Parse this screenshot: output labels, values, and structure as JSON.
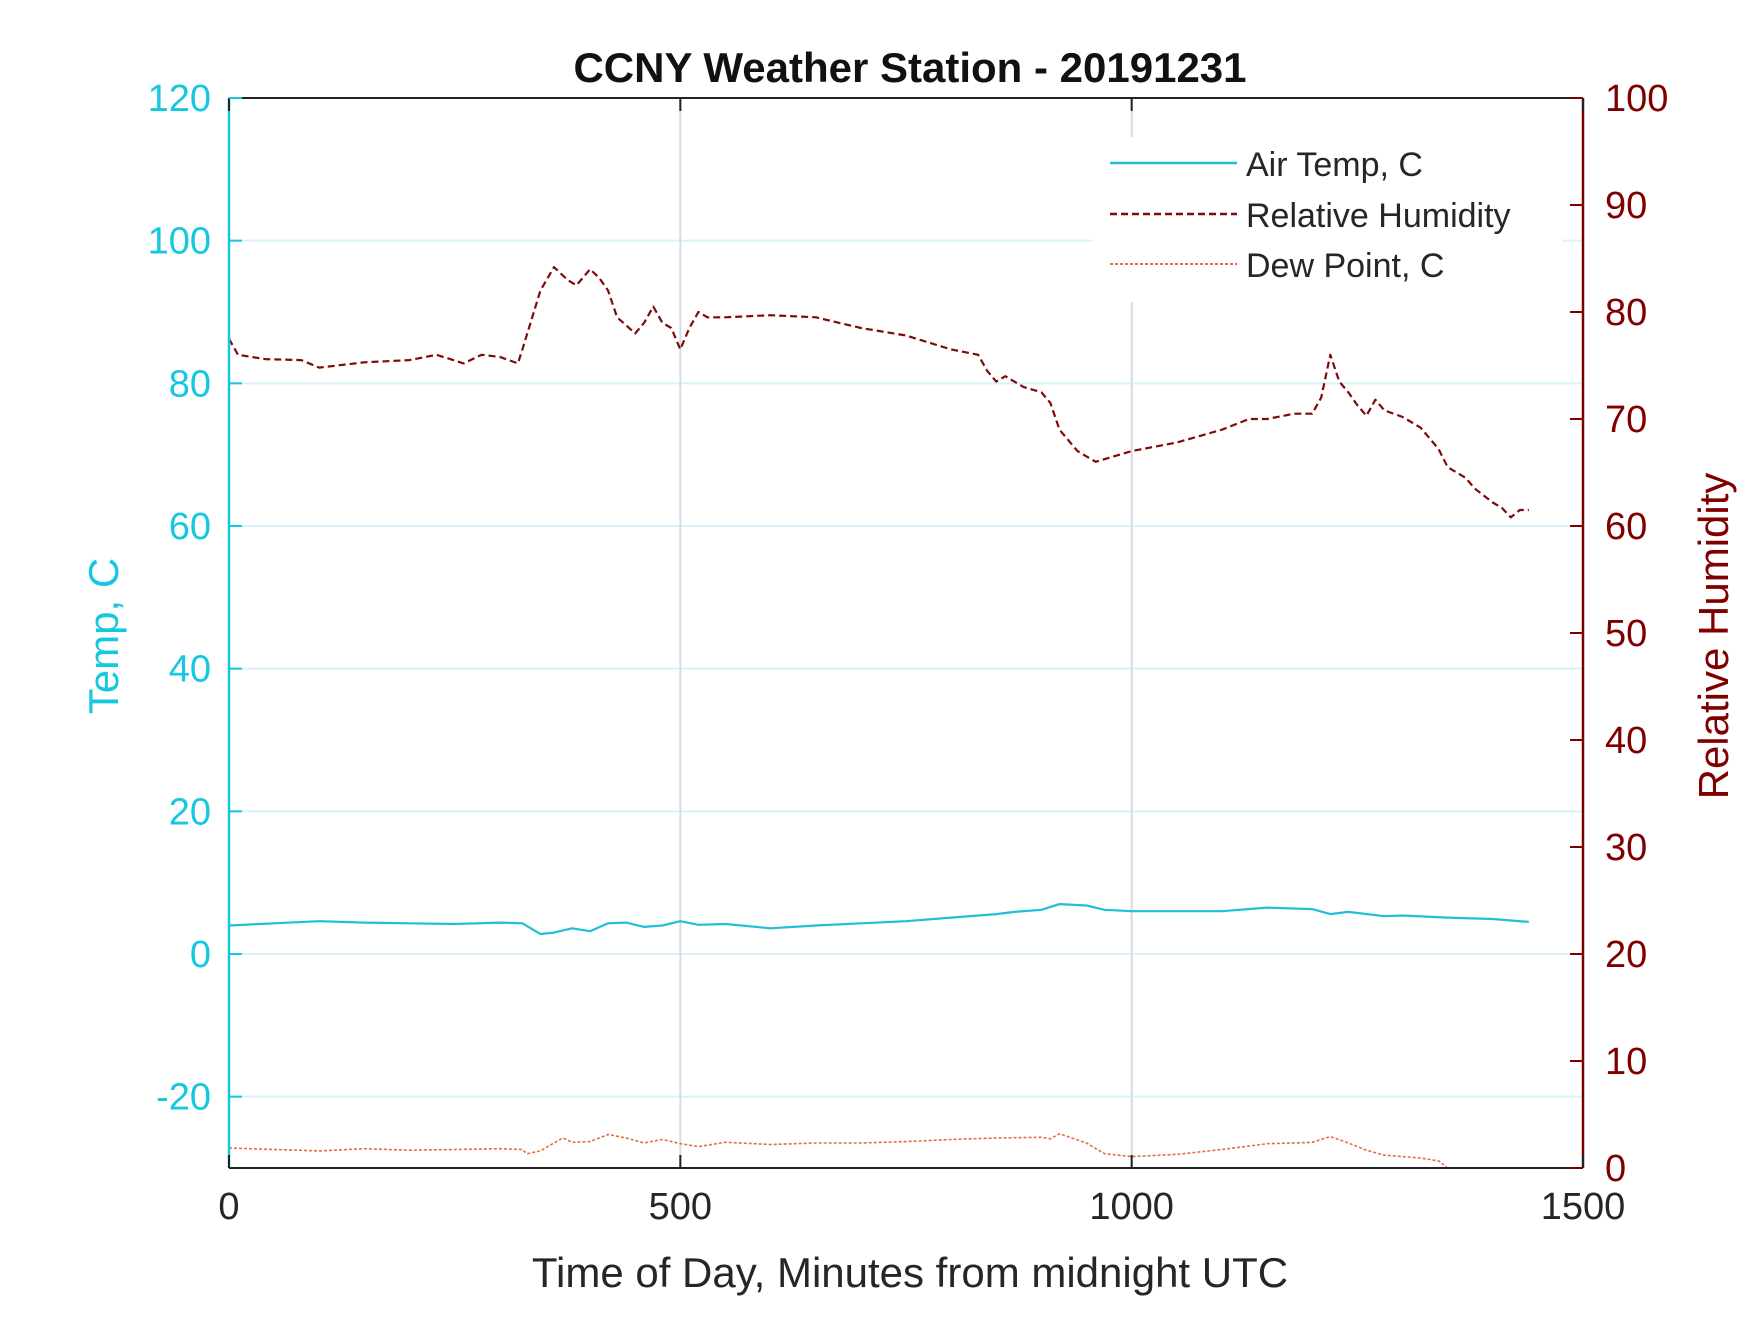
{
  "colors": {
    "temp_axis": "#16c7e0",
    "rh_axis": "#800000",
    "air_temp": "#21bfd6",
    "relative_humidity": "#7f0a0a",
    "dew_point": "#e07040",
    "grid_temp": "#d8f4fa",
    "grid_x": "#d6dbe2",
    "frame": "#222222"
  },
  "chart_data": {
    "type": "line",
    "title": "CCNY Weather Station - 20191231",
    "xlabel": "Time of Day, Minutes from midnight UTC",
    "ylabel_left": "Temp, C",
    "ylabel_right": "Relative Humidity",
    "xlim": [
      0,
      1500
    ],
    "ylim_left": [
      -30,
      120
    ],
    "ylim_right": [
      0,
      100
    ],
    "x_ticks": [
      0,
      500,
      1000,
      1500
    ],
    "x_tick_labels": [
      "0",
      "500",
      "1000",
      "1500"
    ],
    "y_left_ticks": [
      -20,
      0,
      20,
      40,
      60,
      80,
      100,
      120
    ],
    "y_left_tick_labels": [
      "-20",
      "0",
      "20",
      "40",
      "60",
      "80",
      "100",
      "120"
    ],
    "y_right_ticks": [
      0,
      10,
      20,
      30,
      40,
      50,
      60,
      70,
      80,
      90,
      100
    ],
    "y_right_tick_labels": [
      "0",
      "10",
      "20",
      "30",
      "40",
      "50",
      "60",
      "70",
      "80",
      "90",
      "100"
    ],
    "grid": "x and left-y major",
    "legend_position": "top-right",
    "series": [
      {
        "name": "Air Temp, C",
        "axis": "left",
        "style": "solid",
        "x": [
          0,
          50,
          100,
          150,
          200,
          250,
          300,
          325,
          345,
          360,
          380,
          400,
          420,
          440,
          460,
          480,
          500,
          520,
          550,
          600,
          650,
          700,
          750,
          800,
          850,
          870,
          900,
          920,
          950,
          970,
          1000,
          1050,
          1100,
          1150,
          1200,
          1220,
          1240,
          1280,
          1300,
          1350,
          1400,
          1440
        ],
        "y": [
          4.0,
          4.3,
          4.6,
          4.4,
          4.3,
          4.2,
          4.4,
          4.3,
          2.8,
          3.0,
          3.6,
          3.2,
          4.3,
          4.4,
          3.8,
          4.0,
          4.6,
          4.1,
          4.2,
          3.6,
          4.0,
          4.3,
          4.6,
          5.1,
          5.6,
          5.9,
          6.2,
          7.0,
          6.8,
          6.2,
          6.0,
          6.0,
          6.0,
          6.5,
          6.3,
          5.6,
          5.9,
          5.3,
          5.4,
          5.1,
          4.9,
          4.5
        ]
      },
      {
        "name": "Relative Humidity",
        "axis": "right",
        "style": "dashed",
        "x": [
          0,
          10,
          40,
          80,
          100,
          150,
          200,
          230,
          260,
          280,
          300,
          320,
          325,
          345,
          360,
          375,
          385,
          400,
          410,
          420,
          430,
          450,
          460,
          470,
          480,
          490,
          500,
          510,
          520,
          530,
          550,
          600,
          650,
          700,
          750,
          800,
          830,
          840,
          850,
          860,
          880,
          900,
          910,
          920,
          940,
          960,
          980,
          1000,
          1050,
          1100,
          1130,
          1150,
          1180,
          1200,
          1210,
          1220,
          1230,
          1240,
          1250,
          1260,
          1270,
          1280,
          1300,
          1320,
          1340,
          1350,
          1370,
          1380,
          1400,
          1410,
          1420,
          1430,
          1440
        ],
        "y": [
          77.5,
          76,
          75.6,
          75.5,
          74.8,
          75.3,
          75.5,
          76,
          75.2,
          76,
          75.8,
          75.2,
          76.5,
          82,
          84.2,
          83,
          82.5,
          84,
          83.2,
          82,
          79.5,
          78,
          79,
          80.5,
          79,
          78.5,
          76.5,
          78.5,
          80,
          79.5,
          79.5,
          79.7,
          79.5,
          78.5,
          77.8,
          76.5,
          76,
          74.5,
          73.5,
          74,
          73,
          72.5,
          71.5,
          69,
          67,
          66,
          66.5,
          67,
          67.8,
          69,
          70,
          70,
          70.5,
          70.5,
          72,
          76,
          73.5,
          72.5,
          71.3,
          70.3,
          71.8,
          70.8,
          70.2,
          69.2,
          67.2,
          65.5,
          64.5,
          63.5,
          62.2,
          61.7,
          60.8,
          61.5,
          61.5
        ]
      },
      {
        "name": "Dew Point, C",
        "axis": "left",
        "style": "dotted",
        "x": [
          0,
          50,
          100,
          150,
          200,
          250,
          300,
          325,
          330,
          345,
          360,
          370,
          380,
          400,
          420,
          440,
          460,
          480,
          500,
          520,
          550,
          600,
          650,
          700,
          750,
          800,
          850,
          900,
          910,
          920,
          950,
          970,
          1000,
          1050,
          1100,
          1150,
          1180,
          1200,
          1210,
          1220,
          1240,
          1260,
          1280,
          1300,
          1320,
          1340,
          1350
        ],
        "y": [
          -27.2,
          -27.4,
          -27.6,
          -27.3,
          -27.5,
          -27.4,
          -27.3,
          -27.4,
          -28.0,
          -27.6,
          -26.5,
          -25.8,
          -26.4,
          -26.3,
          -25.3,
          -25.8,
          -26.5,
          -26.0,
          -26.6,
          -27.0,
          -26.4,
          -26.7,
          -26.5,
          -26.5,
          -26.3,
          -26.0,
          -25.8,
          -25.7,
          -25.9,
          -25.2,
          -26.5,
          -28.0,
          -28.4,
          -28.1,
          -27.4,
          -26.6,
          -26.5,
          -26.4,
          -26.0,
          -25.6,
          -26.5,
          -27.5,
          -28.2,
          -28.4,
          -28.6,
          -29.0,
          -30.0
        ]
      }
    ]
  }
}
